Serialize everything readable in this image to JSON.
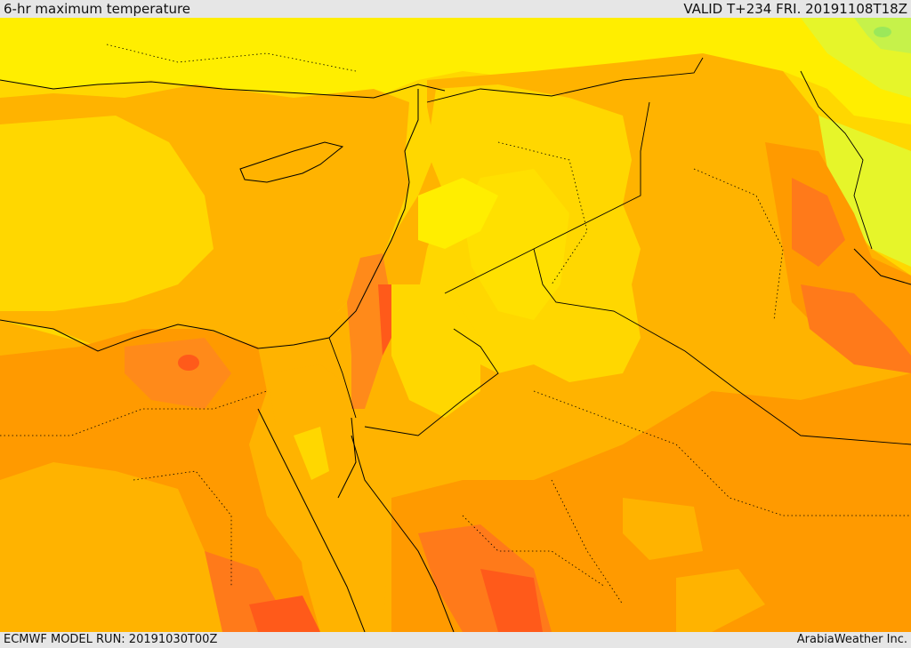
{
  "header": {
    "title": "6-hr maximum temperature",
    "valid": "VALID T+234 FRI. 20191108T18Z"
  },
  "footer": {
    "model_run": "ECMWF MODEL RUN: 20191030T00Z",
    "credit": "ArabiaWeather Inc."
  },
  "map": {
    "region": "Eastern Mediterranean / Middle East",
    "palette": {
      "green": "#c6f24a",
      "light_green": "#e6f52a",
      "yellow": "#ffee00",
      "gold": "#ffd700",
      "light_orange": "#ffb300",
      "orange": "#ff9a00",
      "dark_orange": "#ff7a1a",
      "red_orange": "#ff5a1a",
      "border": "#000000"
    }
  }
}
